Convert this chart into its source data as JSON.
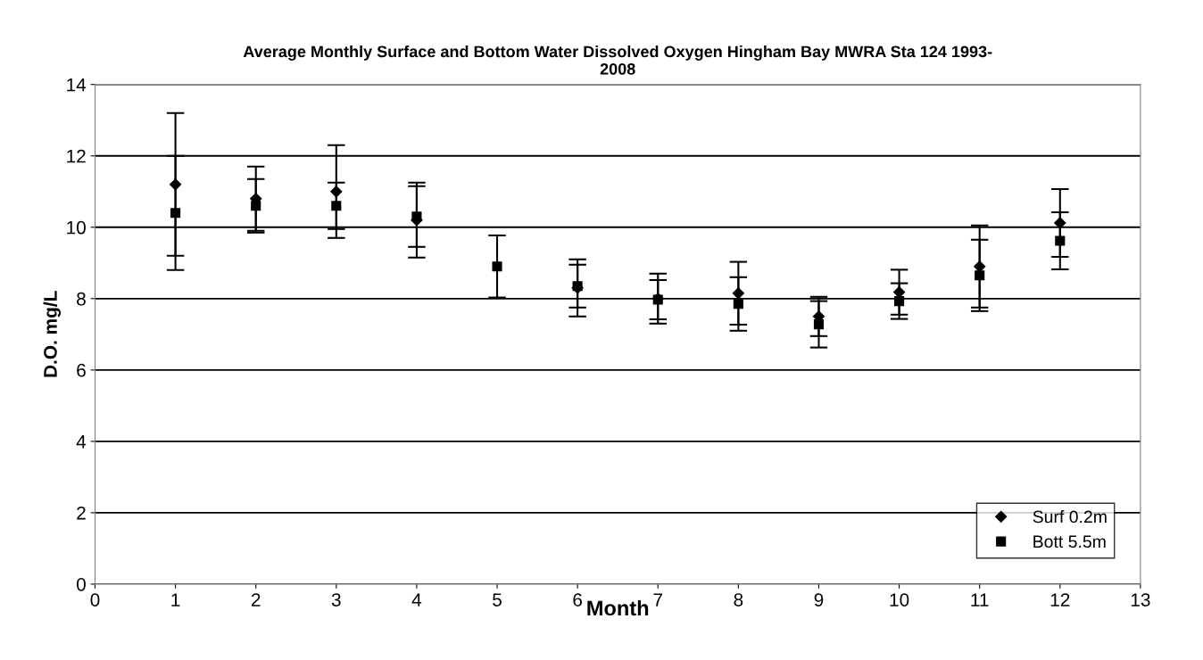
{
  "chart_data": {
    "type": "scatter",
    "title": "Average Monthly Surface and Bottom Water Dissolved Oxygen Hingham Bay MWRA Sta 124 1993-\n2008",
    "xlabel": "Month",
    "ylabel": "D.O. mg/L",
    "x": [
      1,
      2,
      3,
      4,
      5,
      6,
      7,
      8,
      9,
      10,
      11,
      12
    ],
    "series": [
      {
        "name": "Surf 0.2m",
        "color": "#000000",
        "marker": "diamond",
        "values": [
          11.2,
          10.8,
          11.0,
          10.2,
          null,
          8.3,
          8.0,
          8.15,
          7.5,
          8.18,
          8.9,
          10.12
        ],
        "errors": [
          2.0,
          0.9,
          1.3,
          1.05,
          null,
          0.8,
          0.7,
          0.88,
          0.55,
          0.63,
          1.15,
          0.95
        ]
      },
      {
        "name": "Bott 5.5m",
        "color": "#000000",
        "marker": "square",
        "values": [
          10.4,
          10.6,
          10.6,
          10.3,
          8.9,
          8.35,
          7.97,
          7.85,
          7.28,
          7.93,
          8.65,
          9.62
        ],
        "errors": [
          1.6,
          0.75,
          0.65,
          0.85,
          0.87,
          0.6,
          0.55,
          0.75,
          0.65,
          0.5,
          1.0,
          0.8
        ]
      }
    ],
    "xlim": [
      0,
      13
    ],
    "xticks": [
      0,
      1,
      2,
      3,
      4,
      5,
      6,
      7,
      8,
      9,
      10,
      11,
      12,
      13
    ],
    "ylim": [
      0,
      14
    ],
    "yticks": [
      0,
      2,
      4,
      6,
      8,
      10,
      12,
      14
    ],
    "grid": "y",
    "legend": "bottom right"
  }
}
